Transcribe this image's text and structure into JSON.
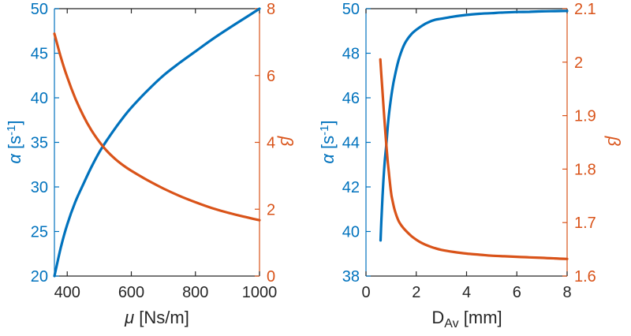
{
  "colors": {
    "blue": "#0072BD",
    "orange": "#D95319",
    "dark": "#262626",
    "background": "#ffffff"
  },
  "axis_labels": {
    "alpha": "α",
    "alpha_mid": " [s",
    "alpha_sup": "-1",
    "alpha_post": "]",
    "beta": "β",
    "mu": "μ",
    "mu_post": " [Ns/m]",
    "d": "D",
    "d_sub": "Av",
    "d_post": " [mm]"
  },
  "chart_data": [
    {
      "type": "line",
      "title": "",
      "xlabel": "μ [Ns/m]",
      "ylabel_left": "α [s⁻¹]",
      "ylabel_right": "β",
      "grid": false,
      "legend": "none",
      "xlim": [
        360,
        1000
      ],
      "ylim_left": [
        20,
        50
      ],
      "ylim_right": [
        0,
        8
      ],
      "xticks": [
        400,
        600,
        800,
        1000
      ],
      "xtick_labels": [
        "400",
        "600",
        "800",
        "1000"
      ],
      "yticks_left": [
        20,
        25,
        30,
        35,
        40,
        45,
        50
      ],
      "ytick_labels_left": [
        "20",
        "25",
        "30",
        "35",
        "40",
        "45",
        "50"
      ],
      "yticks_right": [
        0,
        2,
        4,
        6,
        8
      ],
      "ytick_labels_right": [
        "0",
        "2",
        "4",
        "6",
        "8"
      ],
      "series": [
        {
          "name": "alpha",
          "axis": "left",
          "color_key": "blue",
          "x": [
            360,
            380,
            400,
            425,
            450,
            475,
            500,
            525,
            550,
            575,
            600,
            650,
            700,
            750,
            800,
            850,
            900,
            950,
            1000
          ],
          "y": [
            20,
            23.2,
            25.8,
            28.3,
            30.3,
            32.2,
            33.9,
            35.3,
            36.6,
            37.8,
            38.9,
            40.8,
            42.5,
            43.9,
            45.2,
            46.5,
            47.7,
            48.85,
            50
          ]
        },
        {
          "name": "beta",
          "axis": "right",
          "color_key": "orange",
          "x": [
            360,
            380,
            400,
            425,
            450,
            475,
            500,
            525,
            550,
            575,
            600,
            650,
            700,
            750,
            800,
            850,
            900,
            950,
            1000
          ],
          "y": [
            7.25,
            6.55,
            5.95,
            5.32,
            4.8,
            4.37,
            4.02,
            3.73,
            3.5,
            3.31,
            3.15,
            2.87,
            2.62,
            2.4,
            2.21,
            2.04,
            1.9,
            1.78,
            1.67
          ]
        }
      ]
    },
    {
      "type": "line",
      "title": "",
      "xlabel": "D_Av [mm]",
      "ylabel_left": "α [s⁻¹]",
      "ylabel_right": "β",
      "grid": false,
      "legend": "none",
      "xlim": [
        0,
        8
      ],
      "ylim_left": [
        38,
        50
      ],
      "ylim_right": [
        1.6,
        2.1
      ],
      "xticks": [
        0,
        2,
        4,
        6,
        8
      ],
      "xtick_labels": [
        "0",
        "2",
        "4",
        "6",
        "8"
      ],
      "yticks_left": [
        38,
        40,
        42,
        44,
        46,
        48,
        50
      ],
      "ytick_labels_left": [
        "38",
        "40",
        "42",
        "44",
        "46",
        "48",
        "50"
      ],
      "yticks_right": [
        1.6,
        1.7,
        1.8,
        1.9,
        2,
        2.1
      ],
      "ytick_labels_right": [
        "1.6",
        "1.7",
        "1.8",
        "1.9",
        "2",
        "2.1"
      ],
      "series": [
        {
          "name": "alpha",
          "axis": "left",
          "color_key": "blue",
          "x": [
            0.58,
            0.62,
            0.66,
            0.7,
            0.75,
            0.81,
            0.88,
            0.95,
            1.05,
            1.15,
            1.3,
            1.45,
            1.6,
            1.8,
            2,
            2.25,
            2.5,
            2.75,
            3,
            3.5,
            4,
            4.5,
            5,
            5.5,
            6,
            6.5,
            7,
            7.5,
            8
          ],
          "y": [
            39.6,
            40.7,
            41.6,
            42.4,
            43.2,
            43.9,
            44.9,
            45.6,
            46.4,
            47,
            47.7,
            48.2,
            48.55,
            48.85,
            49.05,
            49.25,
            49.4,
            49.5,
            49.55,
            49.65,
            49.72,
            49.77,
            49.8,
            49.83,
            49.85,
            49.86,
            49.88,
            49.89,
            49.9
          ]
        },
        {
          "name": "beta",
          "axis": "right",
          "color_key": "orange",
          "x": [
            0.57,
            0.63,
            0.69,
            0.75,
            0.81,
            0.87,
            0.93,
            1,
            1.05,
            1.15,
            1.3,
            1.45,
            1.6,
            1.8,
            2,
            2.25,
            2.5,
            2.75,
            3,
            3.5,
            4,
            4.5,
            5,
            5.5,
            6,
            6.5,
            7,
            7.5,
            8
          ],
          "y": [
            2.005,
            1.963,
            1.922,
            1.882,
            1.845,
            1.812,
            1.785,
            1.755,
            1.742,
            1.722,
            1.703,
            1.692,
            1.684,
            1.675,
            1.668,
            1.661,
            1.656,
            1.652,
            1.649,
            1.645,
            1.642,
            1.64,
            1.638,
            1.637,
            1.636,
            1.635,
            1.634,
            1.633,
            1.632
          ]
        }
      ]
    }
  ]
}
